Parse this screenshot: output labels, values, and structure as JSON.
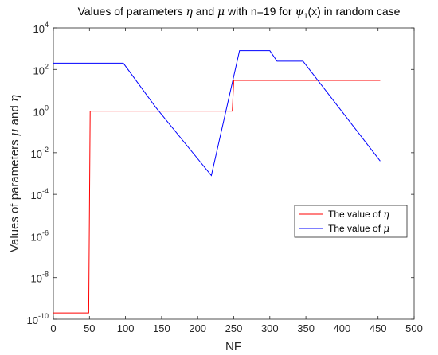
{
  "chart_data": {
    "type": "line",
    "title_parts": {
      "t1": "Values of parameters ",
      "eta": "η",
      "t2": " and ",
      "mu": "μ",
      "t3": " with n=19 for ",
      "psi": "ψ",
      "psi_sub": "1",
      "t4": "(x) in random case"
    },
    "xlabel": "NF",
    "ylabel_parts": {
      "t1": "Values of parameters ",
      "mu": "μ",
      "t2": " and ",
      "eta": "η"
    },
    "xlim": [
      0,
      500
    ],
    "ylim_log10": [
      -10,
      4
    ],
    "yscale": "log",
    "x_ticks": [
      0,
      50,
      100,
      150,
      200,
      250,
      300,
      350,
      400,
      450,
      500
    ],
    "y_tick_exponents": [
      -10,
      -8,
      -6,
      -4,
      -2,
      0,
      2,
      4
    ],
    "y_tick_base": "10",
    "grid": false,
    "legend_position": "center-right",
    "series": [
      {
        "legend_text": "The value of ",
        "legend_symbol": "η",
        "color": "#ff0000",
        "x": [
          0,
          49,
          49,
          51,
          51,
          248,
          248,
          250,
          250,
          453
        ],
        "y": [
          2e-10,
          2e-10,
          2e-10,
          1,
          1,
          1,
          1,
          30,
          30,
          30
        ]
      },
      {
        "legend_text": "The value of ",
        "legend_symbol": "μ",
        "color": "#0000ff",
        "x": [
          0,
          97,
          142,
          219,
          258,
          300,
          310,
          346,
          453
        ],
        "y": [
          200,
          200,
          1.5,
          0.0008,
          800,
          800,
          250,
          250,
          0.004
        ]
      }
    ]
  }
}
